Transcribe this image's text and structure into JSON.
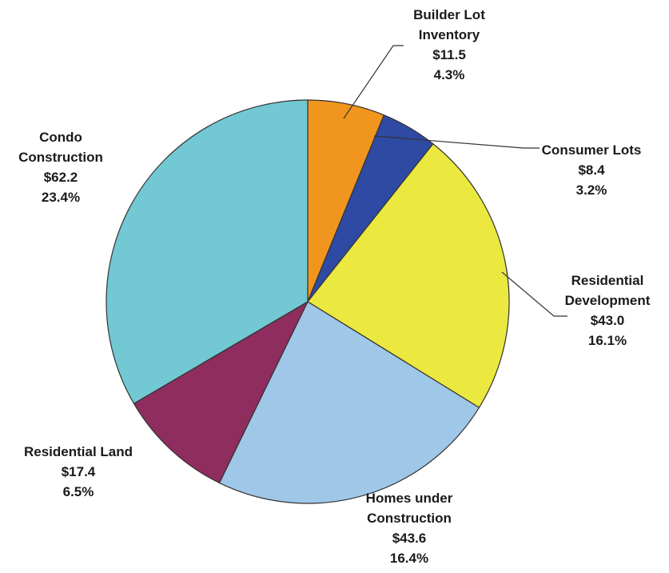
{
  "chart_data": {
    "type": "pie",
    "title": "",
    "slices": [
      {
        "name": "Builder Lot Inventory",
        "name_lines": [
          "Builder Lot",
          "Inventory"
        ],
        "value_label": "$11.5",
        "percent_label": "4.3%",
        "value": 11.5,
        "color": "#f0961e"
      },
      {
        "name": "Consumer Lots",
        "name_lines": [
          "Consumer Lots"
        ],
        "value_label": "$8.4",
        "percent_label": "3.2%",
        "value": 8.4,
        "color": "#2f4aa2"
      },
      {
        "name": "Residential Development",
        "name_lines": [
          "Residential",
          "Development"
        ],
        "value_label": "$43.0",
        "percent_label": "16.1%",
        "value": 43.0,
        "color": "#ebe840"
      },
      {
        "name": "Homes under Construction",
        "name_lines": [
          "Homes under",
          "Construction"
        ],
        "value_label": "$43.6",
        "percent_label": "16.4%",
        "value": 43.6,
        "color": "#9fc7e8"
      },
      {
        "name": "Residential Land",
        "name_lines": [
          "Residential Land"
        ],
        "value_label": "$17.4",
        "percent_label": "6.5%",
        "value": 17.4,
        "color": "#8e2d5e"
      },
      {
        "name": "Condo Construction",
        "name_lines": [
          "Condo",
          "Construction"
        ],
        "value_label": "$62.2",
        "percent_label": "23.4%",
        "value": 62.2,
        "color": "#72c8d3"
      }
    ]
  }
}
